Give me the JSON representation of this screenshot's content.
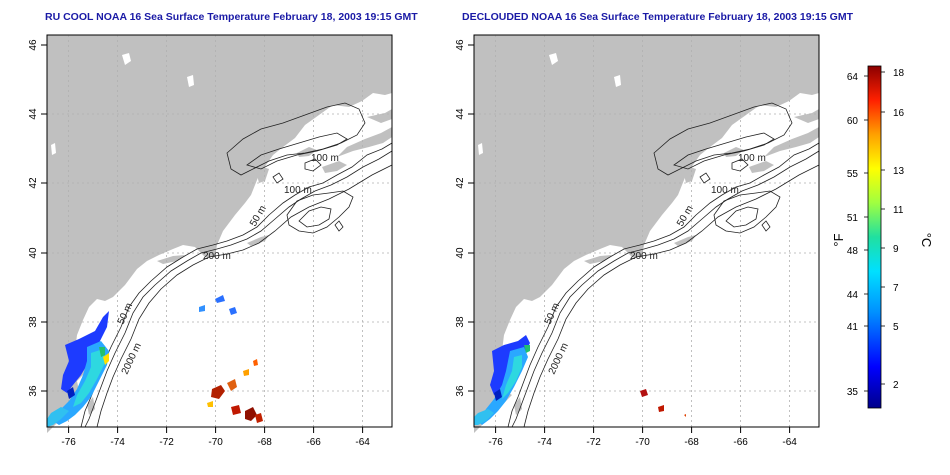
{
  "left_panel": {
    "title": "RU COOL NOAA 16 Sea Surface Temperature February 18, 2003 19:15 GMT",
    "contour_labels": [
      "100 m",
      "100 m",
      "50 m",
      "200 m",
      "50 m",
      "2000 m"
    ]
  },
  "right_panel": {
    "title": "DECLOUDED NOAA 16 Sea Surface Temperature February 18, 2003 19:15 GMT",
    "contour_labels": [
      "100 m",
      "100 m",
      "50 m",
      "200 m",
      "50 m",
      "2000 m"
    ]
  },
  "x_ticks": [
    "-76",
    "-74",
    "-72",
    "-70",
    "-68",
    "-66",
    "-64"
  ],
  "y_ticks": [
    "46",
    "44",
    "42",
    "40",
    "38",
    "36"
  ],
  "colorbar": {
    "f_label": "°F",
    "c_label": "°C",
    "f_ticks": [
      "64",
      "60",
      "55",
      "51",
      "48",
      "44",
      "41",
      "35"
    ],
    "c_ticks": [
      "18",
      "16",
      "13",
      "11",
      "9",
      "7",
      "5",
      "2"
    ]
  },
  "colors": {
    "land": "#c0c0c0",
    "title": "#1a1aa6",
    "grid": "#b0b0b0",
    "contour": "#222222"
  }
}
